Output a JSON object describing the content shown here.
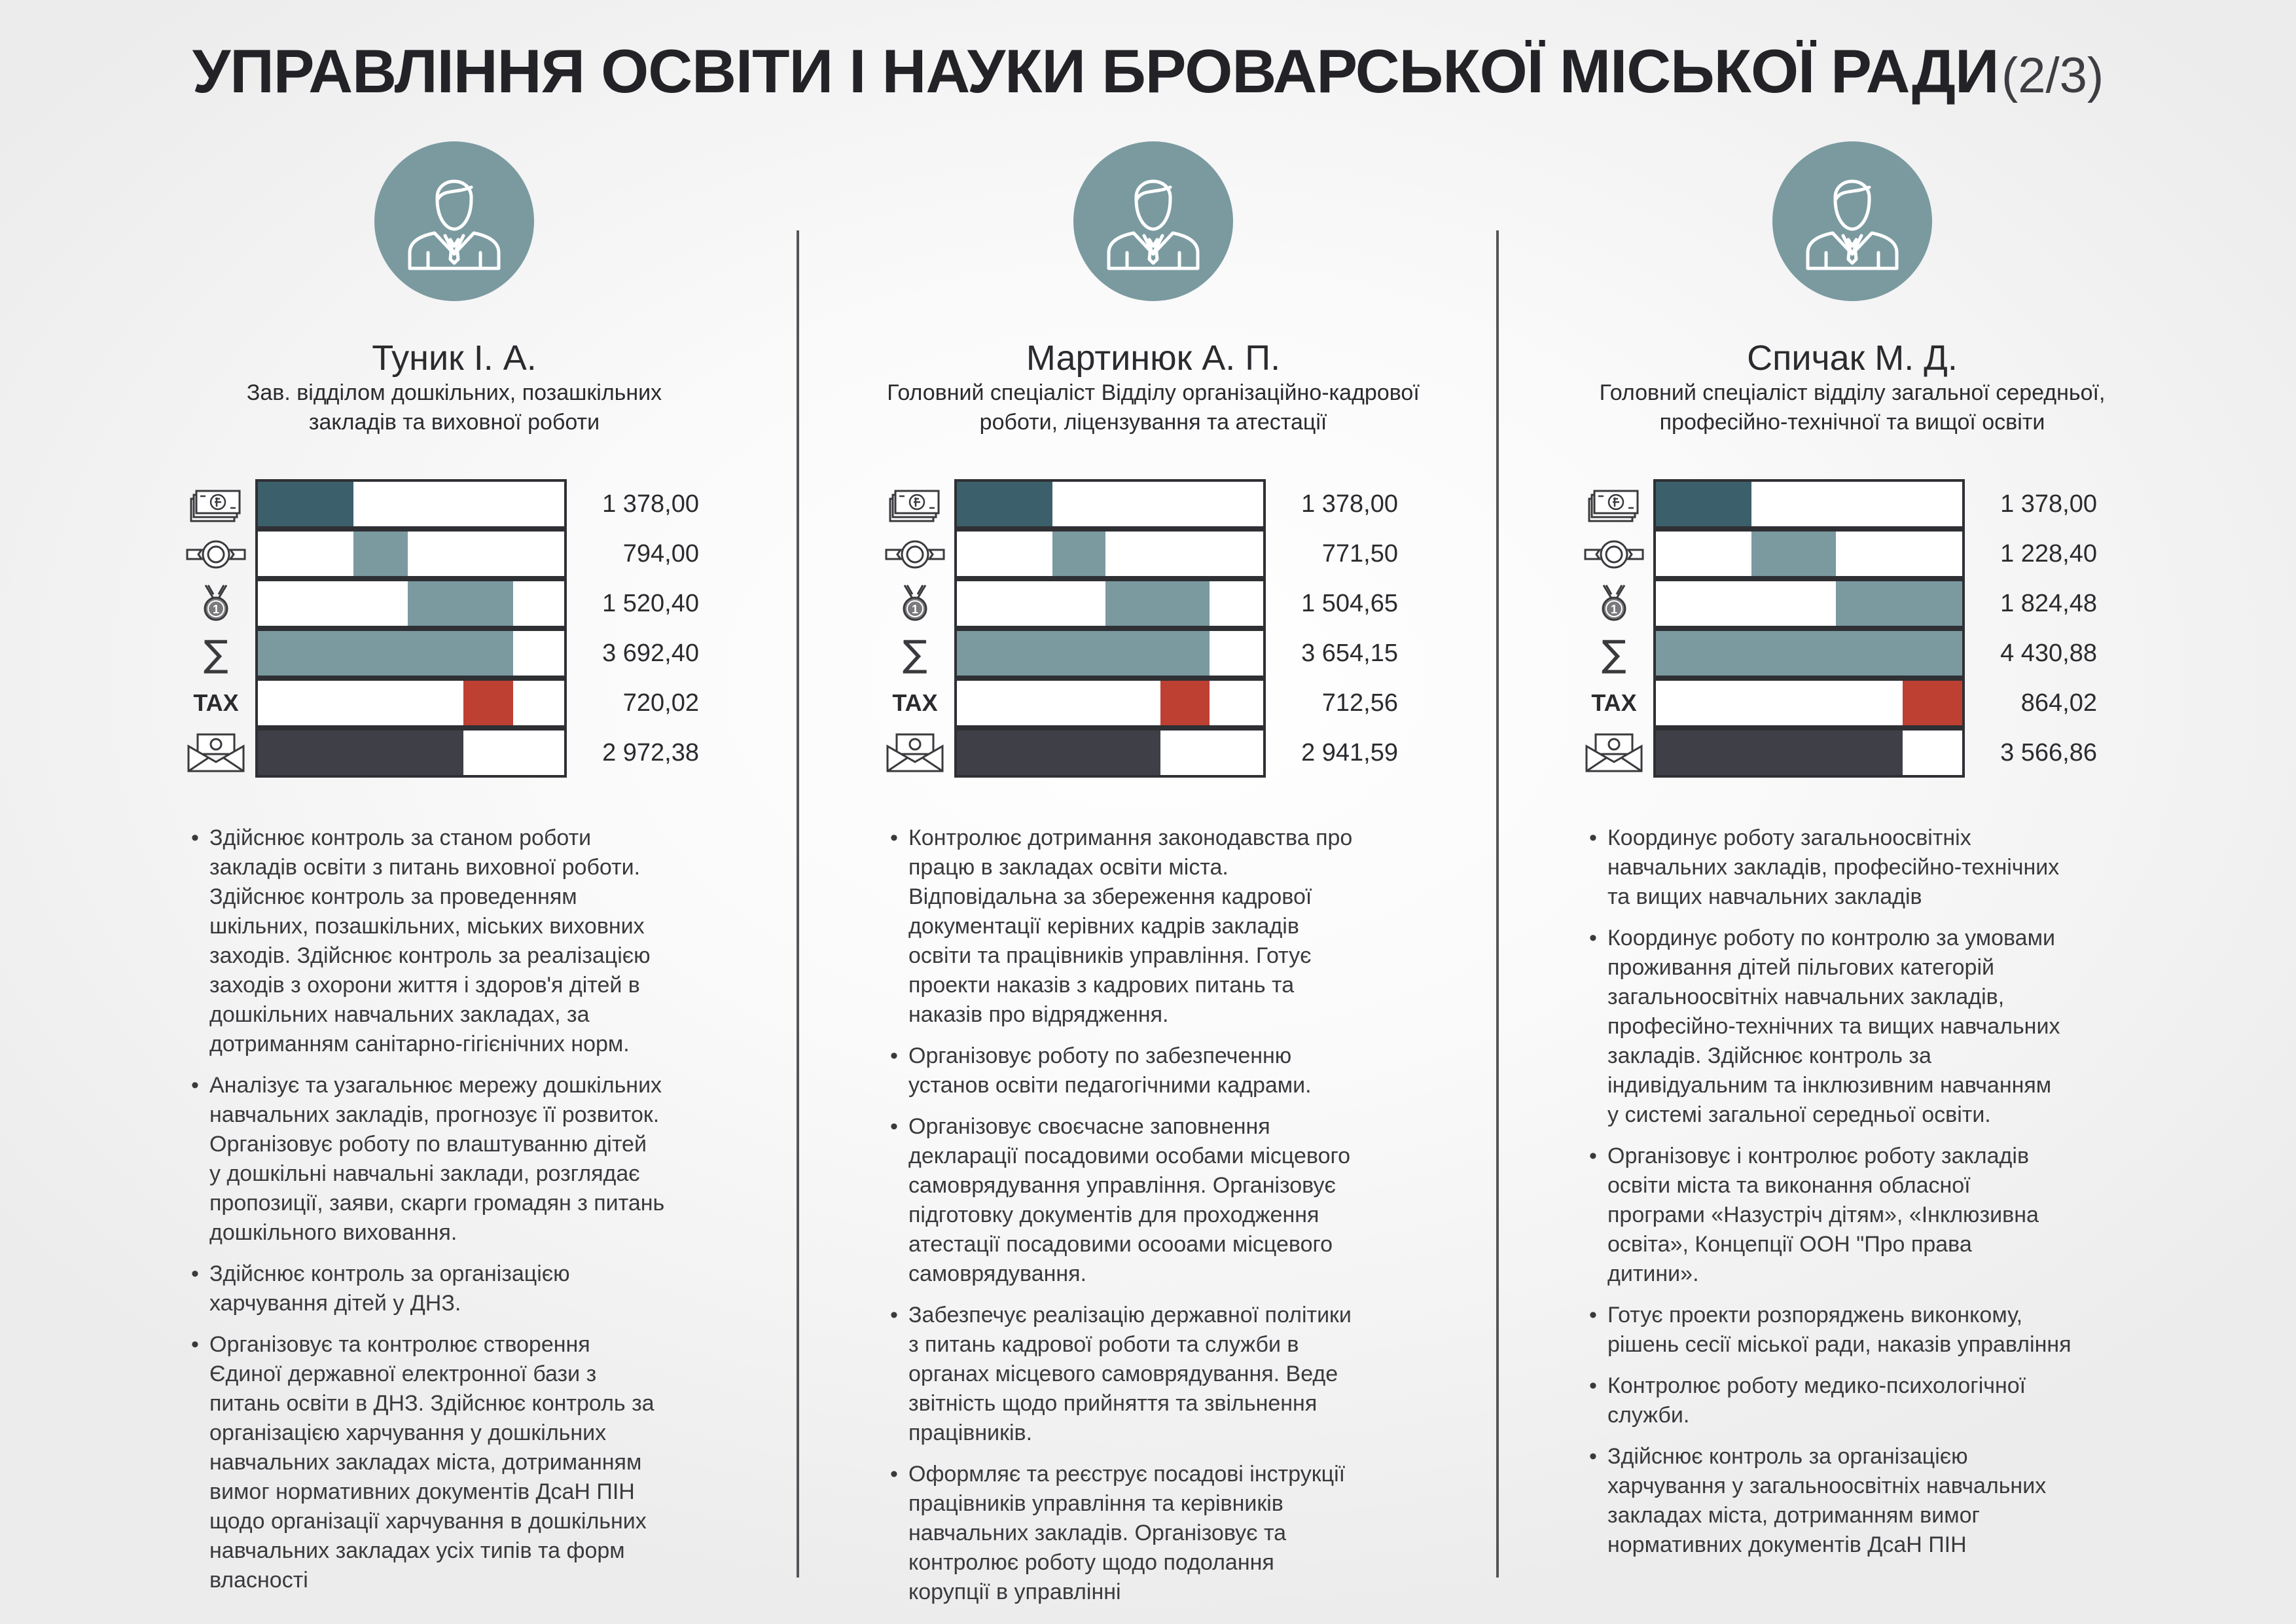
{
  "title": {
    "main": "УПРАВЛІННЯ ОСВІТИ І НАУКИ БРОВАРСЬКОЇ МІСЬКОЇ РАДИ",
    "part": "(2/3)"
  },
  "colors": {
    "salary": "#3b5f6b",
    "bonus": "#7a9aa0",
    "award": "#7a9aa0",
    "total": "#7a9aa0",
    "tax": "#be4033",
    "net": "#3f3f48",
    "avatar": "#7a9aa0"
  },
  "row_icons": [
    "money-icon",
    "ribbon-badge-icon",
    "medal-icon",
    "sum-icon",
    "tax-label",
    "envelope-money-icon"
  ],
  "tax_label": "TAX",
  "scale_max": 4430.88,
  "people": [
    {
      "name": "Туник І. А.",
      "role_lines": [
        "Зав. відділом дошкільних, позашкільних",
        "закладів та виховної роботи"
      ],
      "salary": [
        {
          "display": "1 378,00",
          "start": 0,
          "value": 1378.0
        },
        {
          "display": "794,00",
          "start": 1378.0,
          "value": 794.0
        },
        {
          "display": "1 520,40",
          "start": 2172.0,
          "value": 1520.4
        },
        {
          "display": "3 692,40",
          "start": 0,
          "value": 3692.4
        },
        {
          "display": "720,02",
          "start": 2972.38,
          "value": 720.02
        },
        {
          "display": "2 972,38",
          "start": 0,
          "value": 2972.38
        }
      ],
      "duties": [
        [
          "Здійснює контроль за станом роботи",
          "закладів освіти з питань виховної роботи.",
          "Здійснює контроль за проведенням",
          "шкільних, позашкільних, міських виховних",
          "заходів. Здійснює контроль за реалізацією",
          "заходів з охорони життя і здоров'я дітей в",
          "дошкільних навчальних закладах, за",
          "дотриманням санітарно-гігієнічних норм."
        ],
        [
          "Аналізує та узагальнює мережу дошкільних",
          "навчальних закладів, прогнозує її розвиток.",
          "Організовує роботу по влаштуванню дітей",
          "у дошкільні навчальні заклади, розглядає",
          "пропозиції, заяви, скарги громадян з питань",
          "дошкільного виховання."
        ],
        [
          "Здійснює контроль за організацією",
          "харчування дітей у ДНЗ."
        ],
        [
          "Організовує та контролює створення",
          "Єдиної державної електронної бази з",
          "питань освіти в ДНЗ. Здійснює контроль за",
          "організацією харчування у дошкільних",
          "навчальних закладах міста, дотриманням",
          "вимог нормативних документів ДсаН ПІН",
          "щодо організації харчування в дошкільних",
          "навчальних закладах усіх типів та форм",
          "власності"
        ]
      ]
    },
    {
      "name": "Мартинюк А. П.",
      "role_lines": [
        "Головний спеціаліст Відділу організаційно-кадрової",
        "роботи, ліцензування та атестації"
      ],
      "salary": [
        {
          "display": "1 378,00",
          "start": 0,
          "value": 1378.0
        },
        {
          "display": "771,50",
          "start": 1378.0,
          "value": 771.5
        },
        {
          "display": "1 504,65",
          "start": 2149.5,
          "value": 1504.65
        },
        {
          "display": "3 654,15",
          "start": 0,
          "value": 3654.15
        },
        {
          "display": "712,56",
          "start": 2941.59,
          "value": 712.56
        },
        {
          "display": "2 941,59",
          "start": 0,
          "value": 2941.59
        }
      ],
      "duties": [
        [
          "Контролює дотримання законодавства про",
          "працю в закладах освіти міста.",
          "Відповідальна за збереження кадрової",
          "документації керівних кадрів закладів",
          "освіти та працівників управління. Готує",
          "проекти наказів з кадрових питань та",
          "наказів про відрядження."
        ],
        [
          "Організовує роботу по забезпеченню",
          "установ освіти педагогічними кадрами."
        ],
        [
          "Організовує своєчасне заповнення",
          "декларації посадовими особами місцевого",
          "самоврядування управління. Організовує",
          "підготовку документів для проходження",
          "атестації посадовими осооами місцевого",
          "самоврядування."
        ],
        [
          "Забезпечує реалізацію державної політики",
          "з питань кадрової роботи та служби в",
          "органах місцевого самоврядування. Веде",
          "звітність щодо прийняття та звільнення",
          "працівників."
        ],
        [
          "Оформляє та реєструє посадові інструкції",
          "працівників управління та керівників",
          "навчальних закладів. Організовує та",
          "контролює роботу щодо подолання",
          "корупції в управлінні"
        ]
      ]
    },
    {
      "name": "Спичак М. Д.",
      "role_lines": [
        "Головний спеціаліст відділу загальної середньої,",
        "професійно-технічної та вищої освіти"
      ],
      "salary": [
        {
          "display": "1 378,00",
          "start": 0,
          "value": 1378.0
        },
        {
          "display": "1 228,40",
          "start": 1378.0,
          "value": 1228.4
        },
        {
          "display": "1 824,48",
          "start": 2606.4,
          "value": 1824.48
        },
        {
          "display": "4 430,88",
          "start": 0,
          "value": 4430.88
        },
        {
          "display": "864,02",
          "start": 3566.86,
          "value": 864.02
        },
        {
          "display": "3 566,86",
          "start": 0,
          "value": 3566.86
        }
      ],
      "duties": [
        [
          "Координує роботу загальноосвітніх",
          "навчальних закладів, професійно-технічних",
          "та вищих навчальних закладів"
        ],
        [
          "Координує роботу по контролю за умовами",
          "проживання дітей пільгових категорій",
          "загальноосвітніх навчальних закладів,",
          "професійно-технічних та вищих навчальних",
          "закладів. Здійснює контроль за",
          "індивідуальним та інклюзивним навчанням",
          "у системі загальної середньої освіти."
        ],
        [
          "Організовує і контролює роботу закладів",
          "освіти міста та виконання обласної",
          "програми «Назустріч дітям», «Інклюзивна",
          "освіта», Концепції ООН \"Про права",
          "дитини»."
        ],
        [
          "Готує проекти розпоряджень виконкому,",
          "рішень сесії міської ради, наказів управління"
        ],
        [
          "Контролює роботу медико-психологічної",
          "служби."
        ],
        [
          "Здійснює контроль за організацією",
          "харчування у загальноосвітніх навчальних",
          "закладах міста, дотриманням вимог",
          "нормативних документів ДсаН ПІН"
        ]
      ]
    }
  ]
}
